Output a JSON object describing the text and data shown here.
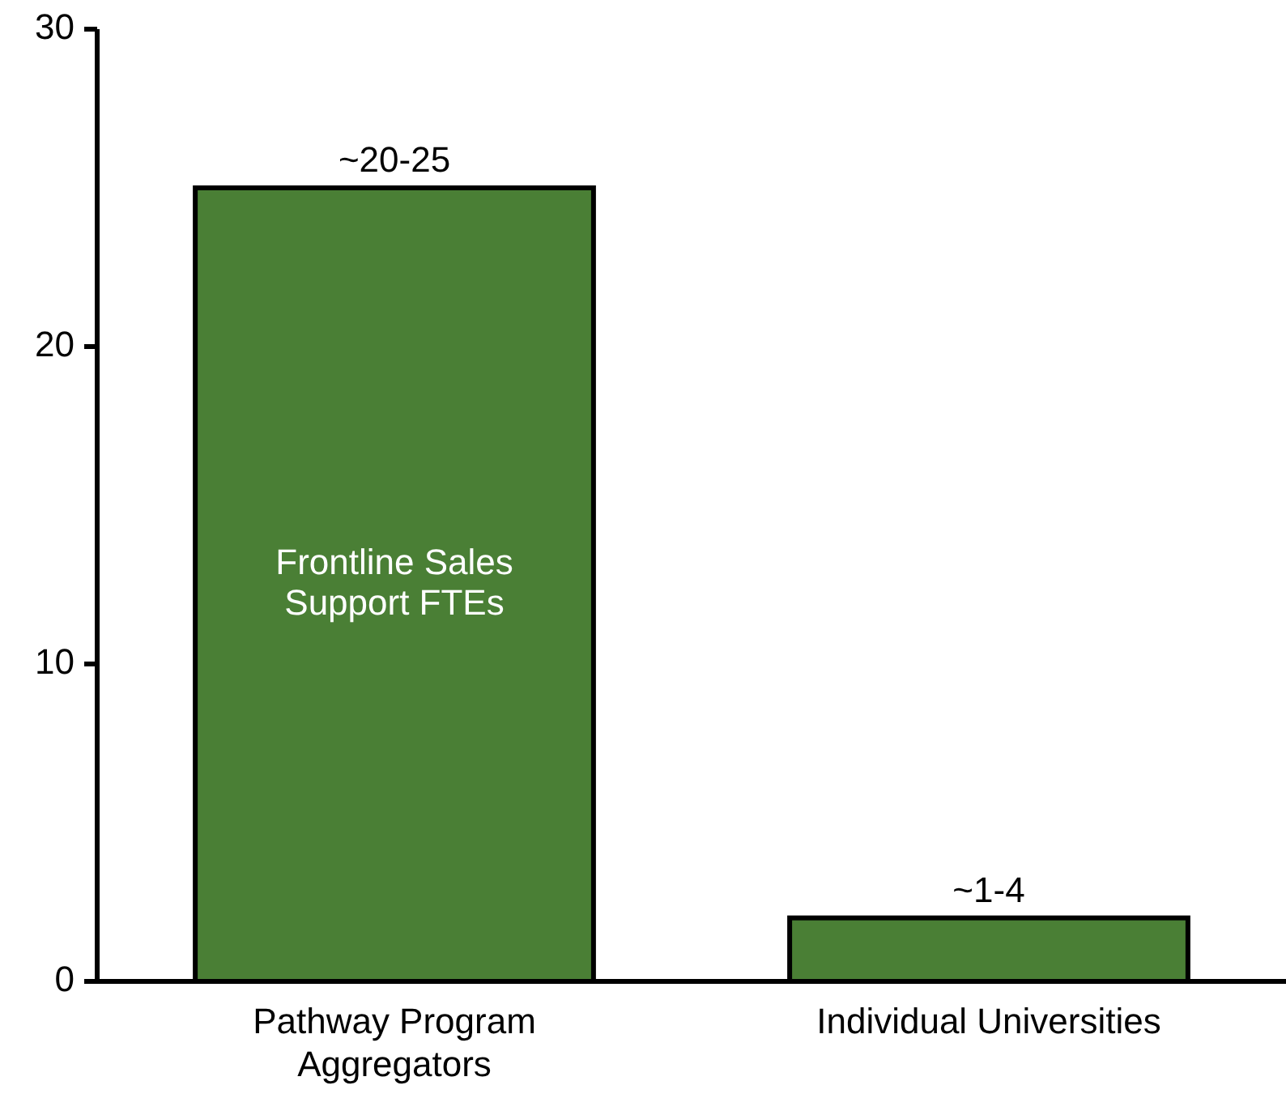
{
  "chart_data": {
    "type": "bar",
    "categories": [
      "Pathway Program Aggregators",
      "Individual Universities"
    ],
    "values": [
      25,
      2
    ],
    "value_labels": [
      "~20-25",
      "~1-4"
    ],
    "color": "#4a7f35",
    "ylim": [
      0,
      30
    ],
    "yticks": [
      0,
      10,
      20,
      30
    ],
    "annotations": [
      "Frontline Sales Support FTEs"
    ]
  }
}
